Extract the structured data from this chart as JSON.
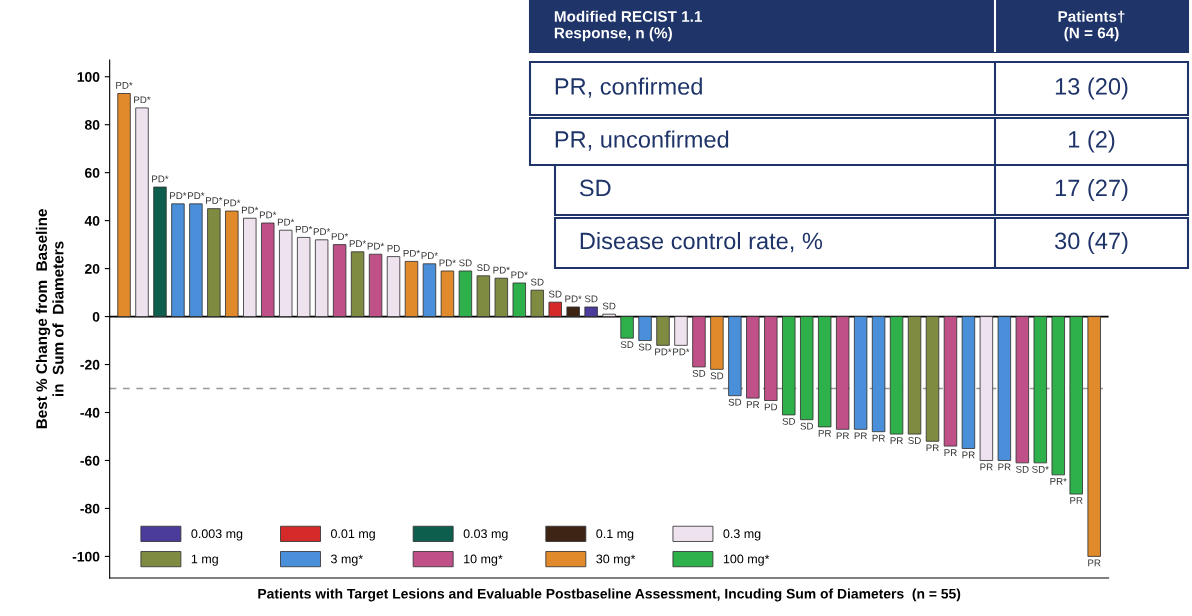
{
  "chart_data": {
    "type": "bar",
    "ylabel": "Best % Change from  Baseline\nin  Sum of  Diameters",
    "xlabel": "Patients with Target Lesions and Evaluable Postbaseline Assessment, Incuding Sum of Diameters  (n = 55)",
    "categories": [
      null,
      null,
      null,
      null,
      null,
      null,
      null,
      null,
      null,
      null,
      null,
      null,
      null,
      null,
      null,
      null,
      null,
      null,
      null,
      null,
      null,
      null,
      null,
      null,
      null,
      null,
      null,
      null,
      null,
      null,
      null,
      null,
      null,
      null,
      null,
      null,
      null,
      null,
      null,
      null,
      null,
      null,
      null,
      null,
      null,
      null,
      null,
      null,
      null,
      null,
      null,
      null,
      null,
      null,
      null
    ],
    "series": [
      {
        "name": "0.003 mg",
        "color": "#4b3c9b",
        "values": [
          null,
          null,
          null,
          null,
          null,
          null,
          null,
          null,
          null,
          null,
          null,
          null,
          null,
          null,
          null,
          null,
          null,
          null,
          null,
          null,
          null,
          null,
          null,
          null,
          null,
          null,
          4,
          null,
          null,
          null,
          null,
          null,
          null,
          null,
          null,
          null,
          null,
          null,
          null,
          null,
          null,
          null,
          null,
          null,
          null,
          null,
          null,
          null,
          null,
          null,
          null,
          null,
          null,
          null,
          null
        ]
      },
      {
        "name": "1 mg",
        "color": "#7f8b40",
        "values": [
          null,
          null,
          null,
          null,
          null,
          45,
          null,
          null,
          null,
          null,
          null,
          null,
          null,
          27,
          null,
          null,
          null,
          null,
          null,
          null,
          17,
          16,
          null,
          11,
          null,
          null,
          null,
          null,
          null,
          null,
          -12,
          null,
          null,
          null,
          null,
          null,
          null,
          null,
          null,
          null,
          null,
          null,
          null,
          null,
          -49,
          -52,
          null,
          null,
          null,
          null,
          null,
          null,
          null,
          null,
          null
        ]
      },
      {
        "name": "0.01 mg",
        "color": "#d42a2a",
        "values": [
          null,
          null,
          null,
          null,
          null,
          null,
          null,
          null,
          null,
          null,
          null,
          null,
          null,
          null,
          null,
          null,
          null,
          null,
          null,
          null,
          null,
          null,
          null,
          null,
          6,
          null,
          null,
          null,
          null,
          null,
          null,
          null,
          null,
          null,
          null,
          null,
          null,
          null,
          null,
          null,
          null,
          null,
          null,
          null,
          null,
          null,
          null,
          null,
          null,
          null,
          null,
          null,
          null,
          null,
          null
        ]
      },
      {
        "name": "3 mg*",
        "color": "#4a8fd9",
        "values": [
          null,
          null,
          null,
          47,
          47,
          null,
          null,
          null,
          null,
          null,
          null,
          null,
          null,
          null,
          null,
          null,
          null,
          22,
          null,
          null,
          null,
          null,
          null,
          null,
          null,
          null,
          null,
          null,
          null,
          -10,
          null,
          null,
          null,
          null,
          -33,
          null,
          null,
          null,
          null,
          null,
          null,
          -47,
          -48,
          null,
          null,
          null,
          null,
          -55,
          null,
          -60,
          null,
          null,
          null,
          null,
          null
        ]
      },
      {
        "name": "0.03 mg",
        "color": "#0e5e4e",
        "values": [
          null,
          null,
          54,
          null,
          null,
          null,
          null,
          null,
          null,
          null,
          null,
          null,
          null,
          null,
          null,
          null,
          null,
          null,
          null,
          null,
          null,
          null,
          null,
          null,
          null,
          null,
          null,
          null,
          null,
          null,
          null,
          null,
          null,
          null,
          null,
          null,
          null,
          null,
          null,
          null,
          null,
          null,
          null,
          null,
          null,
          null,
          null,
          null,
          null,
          null,
          null,
          null,
          null,
          null,
          null
        ]
      },
      {
        "name": "10 mg*",
        "color": "#c05088",
        "values": [
          null,
          null,
          null,
          null,
          null,
          null,
          null,
          null,
          39,
          null,
          null,
          null,
          30,
          null,
          26,
          null,
          null,
          null,
          null,
          null,
          null,
          null,
          null,
          null,
          null,
          null,
          null,
          null,
          null,
          null,
          null,
          null,
          -21,
          null,
          null,
          -34,
          -35,
          null,
          null,
          null,
          -47,
          null,
          null,
          null,
          null,
          null,
          -54,
          null,
          null,
          null,
          -61,
          null,
          null,
          null,
          null
        ]
      },
      {
        "name": "0.1 mg",
        "color": "#3d2415",
        "values": [
          null,
          null,
          null,
          null,
          null,
          null,
          null,
          null,
          null,
          null,
          null,
          null,
          null,
          null,
          null,
          null,
          null,
          null,
          null,
          null,
          null,
          null,
          null,
          null,
          null,
          4,
          null,
          null,
          null,
          null,
          null,
          null,
          null,
          null,
          null,
          null,
          null,
          null,
          null,
          null,
          null,
          null,
          null,
          null,
          null,
          null,
          null,
          null,
          null,
          null,
          null,
          null,
          null,
          null,
          null
        ]
      },
      {
        "name": "30 mg*",
        "color": "#e08a2c",
        "values": [
          93,
          null,
          null,
          null,
          null,
          null,
          44,
          null,
          null,
          null,
          null,
          null,
          null,
          null,
          null,
          null,
          23,
          null,
          19,
          null,
          null,
          null,
          null,
          null,
          null,
          null,
          null,
          null,
          null,
          null,
          null,
          null,
          null,
          -22,
          null,
          null,
          null,
          null,
          null,
          null,
          null,
          null,
          null,
          null,
          null,
          null,
          null,
          null,
          null,
          null,
          null,
          null,
          null,
          null,
          -100
        ]
      },
      {
        "name": "0.3 mg",
        "color": "#efe2ef",
        "values": [
          null,
          87,
          null,
          null,
          null,
          null,
          null,
          41,
          null,
          36,
          33,
          32,
          null,
          null,
          null,
          25,
          null,
          null,
          null,
          null,
          null,
          null,
          null,
          null,
          null,
          null,
          null,
          1,
          null,
          null,
          null,
          -12,
          null,
          null,
          null,
          null,
          null,
          null,
          null,
          null,
          null,
          null,
          null,
          null,
          null,
          null,
          null,
          null,
          -60,
          null,
          null,
          null,
          null,
          null,
          null
        ]
      },
      {
        "name": "100 mg*",
        "color": "#2eb04a",
        "values": [
          null,
          null,
          null,
          null,
          null,
          null,
          null,
          null,
          null,
          null,
          null,
          null,
          null,
          null,
          null,
          null,
          null,
          null,
          null,
          19,
          null,
          null,
          14,
          null,
          null,
          null,
          null,
          null,
          -9,
          null,
          null,
          null,
          null,
          null,
          null,
          null,
          null,
          -41,
          -43,
          -46,
          null,
          null,
          null,
          -49,
          null,
          null,
          null,
          null,
          null,
          null,
          null,
          -61,
          -66,
          -74,
          null
        ]
      }
    ],
    "value_labels": [
      "PD*",
      "PD*",
      "PD*",
      "PD*",
      "PD*",
      "PD*",
      "PD*",
      "PD*",
      "PD*",
      "PD*",
      "PD*",
      "PD*",
      "PD*",
      "PD*",
      "PD*",
      "PD",
      "PD*",
      "PD*",
      "PD*",
      "SD",
      "SD",
      "PD*",
      "PD*",
      "SD",
      "SD",
      "PD*",
      "SD",
      "SD",
      "SD",
      "SD",
      "PD*",
      "PD*",
      "SD",
      "SD",
      "SD",
      "PR",
      "PD",
      "SD",
      "SD",
      "PR",
      "PR",
      "PR",
      "PR",
      "PR",
      "SD",
      "PR",
      "PR",
      "PR",
      "PR",
      "PR",
      "SD",
      "SD*",
      "PR*",
      "PR",
      "PR"
    ],
    "ylim": [
      -109,
      107
    ],
    "yticks": [
      -100,
      -80,
      -60,
      -40,
      -20,
      0,
      20,
      40,
      60,
      80,
      100
    ],
    "ref_lines": [
      {
        "axis": "y",
        "value": 0,
        "color": "#000000",
        "line_style": "solid"
      },
      {
        "axis": "y",
        "value": -30,
        "color": "#999999",
        "line_style": "dashed"
      }
    ],
    "legend": "bottom left",
    "grid": false,
    "annotations": [
      "Modified RECIST 1.1\nResponse, n (%)",
      "Patients†\n(N = 64)",
      "PR, confirmed",
      "13 (20)",
      "PR, unconfirmed",
      "1 (2)",
      "SD",
      "17 (27)",
      "Disease control rate, %",
      "30 (47)"
    ]
  }
}
